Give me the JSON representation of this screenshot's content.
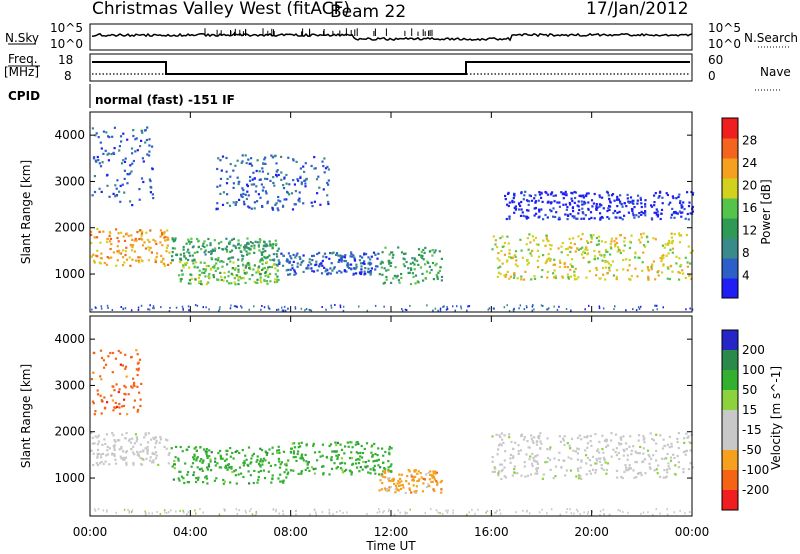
{
  "header": {
    "title": "Christmas Valley West (fitACF)",
    "beam": "Beam 22",
    "date": "17/Jan/2012"
  },
  "top_panels": {
    "nsky_label": "N.Sky",
    "nsky_ticks": [
      "10^5",
      "10^0"
    ],
    "nsearch_label": "N.Search",
    "nsearch_ticks": [
      "10^5",
      "10^0"
    ],
    "freq_label_1": "Freq.",
    "freq_label_2": "[MHz]",
    "freq_ticks": [
      "18",
      "8"
    ],
    "nave_label": "Nave",
    "nave_ticks": [
      "60",
      "0"
    ],
    "cpid_label": "CPID",
    "cpid_text": "normal (fast) -151 IF"
  },
  "colors": {
    "power_scale": [
      "#1e1ef5",
      "#2d5fc8",
      "#3a8a8a",
      "#2f9a55",
      "#55c44a",
      "#d2d21e",
      "#f5a01e",
      "#f5641e",
      "#f01e1e"
    ],
    "velocity_scale": [
      "#2626c8",
      "#2a8a4a",
      "#33b030",
      "#8cd23c",
      "#c8c8c8",
      "#c8c8c8",
      "#f5a01e",
      "#f56414",
      "#f01e1e"
    ]
  },
  "chart_data": [
    {
      "type": "heatmap",
      "panel": "power",
      "ylabel": "Slant Range [km]",
      "xlabel": "Time UT",
      "x_range": [
        "00:00",
        "24:00"
      ],
      "ylim": [
        180,
        4500
      ],
      "yticks": [
        1000,
        2000,
        3000,
        4000
      ],
      "colorbar_label": "Power [dB]",
      "colorbar_ticks": [
        4,
        8,
        12,
        16,
        20,
        24,
        28
      ],
      "colorbar_range": [
        0,
        32
      ],
      "bands": [
        {
          "t_start": 0.0,
          "t_end": 3.2,
          "r_start": 1200,
          "r_end": 2000,
          "level": 26
        },
        {
          "t_start": 3.2,
          "t_end": 7.5,
          "r_start": 1300,
          "r_end": 1800,
          "level": 14
        },
        {
          "t_start": 3.5,
          "t_end": 7.5,
          "r_start": 800,
          "r_end": 1300,
          "level": 18
        },
        {
          "t_start": 7.5,
          "t_end": 11.5,
          "r_start": 1000,
          "r_end": 1500,
          "level": 6
        },
        {
          "t_start": 11.5,
          "t_end": 14.0,
          "r_start": 800,
          "r_end": 1600,
          "level": 16
        },
        {
          "t_start": 16.0,
          "t_end": 24.0,
          "r_start": 900,
          "r_end": 1900,
          "level": 22
        },
        {
          "t_start": 16.5,
          "t_end": 24.0,
          "r_start": 2200,
          "r_end": 2800,
          "level": 5
        },
        {
          "t_start": 5.0,
          "t_end": 9.5,
          "r_start": 2400,
          "r_end": 3600,
          "level": 6
        },
        {
          "t_start": 0.0,
          "t_end": 2.5,
          "r_start": 2500,
          "r_end": 4200,
          "level": 7
        }
      ]
    },
    {
      "type": "heatmap",
      "panel": "velocity",
      "ylabel": "Slant Range [km]",
      "xlabel": "Time UT",
      "x_range": [
        "00:00",
        "24:00"
      ],
      "ylim": [
        180,
        4500
      ],
      "yticks": [
        1000,
        2000,
        3000,
        4000
      ],
      "colorbar_label": "Velocity [m s^-1]",
      "colorbar_ticks": [
        "200",
        "100",
        "50",
        "15",
        "-15",
        "-50",
        "-100",
        "-200"
      ],
      "bands": [
        {
          "t_start": 0.0,
          "t_end": 3.2,
          "r_start": 1300,
          "r_end": 2000,
          "level": 0
        },
        {
          "t_start": 3.2,
          "t_end": 8.0,
          "r_start": 900,
          "r_end": 1700,
          "level": 60
        },
        {
          "t_start": 8.0,
          "t_end": 12.0,
          "r_start": 1100,
          "r_end": 1800,
          "level": 30
        },
        {
          "t_start": 11.5,
          "t_end": 14.0,
          "r_start": 700,
          "r_end": 1200,
          "level": -70
        },
        {
          "t_start": 16.0,
          "t_end": 24.0,
          "r_start": 1000,
          "r_end": 2000,
          "level": 0
        },
        {
          "t_start": 0.0,
          "t_end": 2.0,
          "r_start": 2400,
          "r_end": 3800,
          "level": -80
        }
      ]
    }
  ],
  "x_ticks": [
    "00:00",
    "04:00",
    "08:00",
    "12:00",
    "16:00",
    "20:00",
    "00:00"
  ]
}
